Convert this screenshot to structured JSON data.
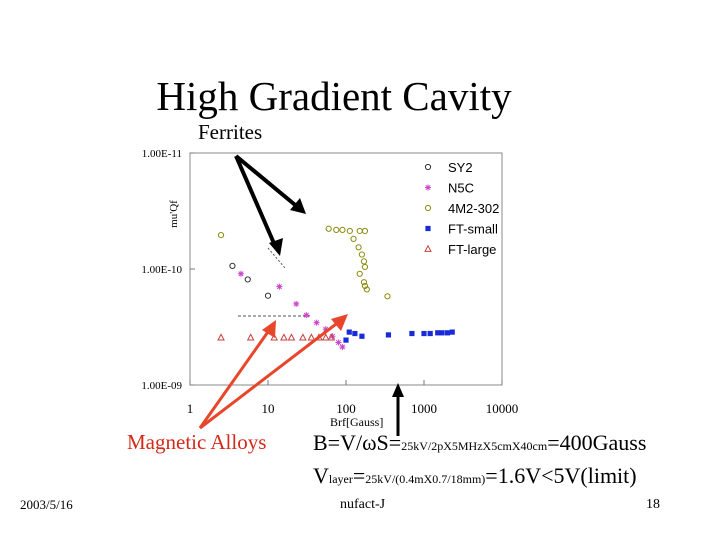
{
  "slide": {
    "title": "High Gradient Cavity",
    "ferrites_label": "Ferrites",
    "magnetic_alloys_label": "Magnetic Alloys",
    "formula_line1": {
      "a": "B=V/ωS=",
      "sub": "25kV/2pX5MHzX5cmX40cm",
      "b": "=400Gauss"
    },
    "formula_line2": {
      "a": "V",
      "sub1": "layer",
      "b": "=",
      "sub2": "25kV/(0.4mX0.7/18mm)",
      "c": "=1.6V<5V(limit)"
    },
    "date": "2003/5/16",
    "footer": "nufact-J",
    "page_number": "18"
  },
  "colors": {
    "arrow_red": "#e8462a",
    "magnetic_alloys_text": "#d42a1a",
    "series_SY2": "#333333",
    "series_N5C": "#cc44cc",
    "series_4M2_302": "#8a8a10",
    "series_FT_small": "#1a2ad8",
    "series_FT_large": "#c84040"
  },
  "chart_data": {
    "type": "scatter",
    "x_scale": "log",
    "y_scale": "log",
    "xlim": [
      1,
      10000
    ],
    "ylim": [
      1e-09,
      1e-11
    ],
    "y_inverted": true,
    "xlabel": "Brf[Gauss]",
    "ylabel": "mu'Qf",
    "x_ticks": [
      "1",
      "10",
      "100",
      "1000",
      "10000"
    ],
    "y_ticks": [
      "1.00E-11",
      "1.00E-10",
      "1.00E-09"
    ],
    "legend_position": "top-right",
    "series": [
      {
        "name": "SY2",
        "marker": "circle",
        "points": [
          [
            3.5,
            9.4e-11
          ],
          [
            5.5,
            1.23e-10
          ],
          [
            10,
            1.7e-10
          ]
        ]
      },
      {
        "name": "N5C",
        "marker": "asterisk",
        "points": [
          [
            4.5,
            1.1e-10
          ],
          [
            14,
            1.42e-10
          ],
          [
            23,
            2e-10
          ],
          [
            31,
            2.5e-10
          ],
          [
            42,
            2.9e-10
          ],
          [
            55,
            3.3e-10
          ],
          [
            67,
            3.8e-10
          ],
          [
            80,
            4.3e-10
          ],
          [
            90,
            4.7e-10
          ]
        ]
      },
      {
        "name": "4M2-302",
        "marker": "circle",
        "points": [
          [
            2.5,
            5.1e-11
          ],
          [
            60,
            4.5e-11
          ],
          [
            75,
            4.6e-11
          ],
          [
            90,
            4.6e-11
          ],
          [
            112,
            4.7e-11
          ],
          [
            150,
            4.7e-11
          ],
          [
            175,
            4.7e-11
          ],
          [
            125,
            5.5e-11
          ],
          [
            145,
            6.5e-11
          ],
          [
            160,
            7.5e-11
          ],
          [
            170,
            8.6e-11
          ],
          [
            175,
            9.6e-11
          ],
          [
            150,
            1.1e-10
          ],
          [
            170,
            1.3e-10
          ],
          [
            175,
            1.4e-10
          ],
          [
            185,
            1.5e-10
          ],
          [
            340,
            1.72e-10
          ]
        ]
      },
      {
        "name": "FT-small",
        "marker": "square",
        "points": [
          [
            110,
            3.5e-10
          ],
          [
            100,
            4.1e-10
          ],
          [
            130,
            3.6e-10
          ],
          [
            160,
            3.8e-10
          ],
          [
            350,
            3.7e-10
          ],
          [
            700,
            3.6e-10
          ],
          [
            1000,
            3.6e-10
          ],
          [
            1200,
            3.6e-10
          ],
          [
            1500,
            3.55e-10
          ],
          [
            1700,
            3.55e-10
          ],
          [
            2000,
            3.55e-10
          ],
          [
            2300,
            3.5e-10
          ]
        ]
      },
      {
        "name": "FT-large",
        "marker": "triangle",
        "points": [
          [
            2.5,
            3.9e-10
          ],
          [
            6,
            3.9e-10
          ],
          [
            12,
            3.9e-10
          ],
          [
            16,
            3.9e-10
          ],
          [
            20,
            3.9e-10
          ],
          [
            28,
            3.9e-10
          ],
          [
            36,
            3.9e-10
          ],
          [
            45,
            3.9e-10
          ],
          [
            55,
            3.9e-10
          ],
          [
            65,
            3.9e-10
          ]
        ]
      }
    ]
  }
}
